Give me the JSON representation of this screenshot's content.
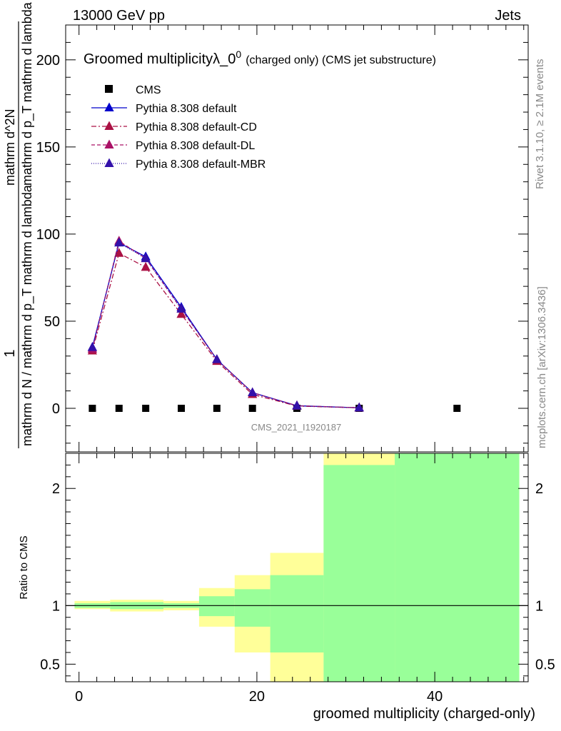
{
  "header": {
    "left": "13000 GeV pp",
    "right": "Jets"
  },
  "side_text": {
    "rivet": "Rivet 3.1.10, ≥ 2.1M events",
    "source": "mcplots.cern.ch [arXiv:1306.3436]"
  },
  "main_ylabel": {
    "numerator": "1",
    "denominator": "mathrm d N / mathrm d p_T mathrm d lambda",
    "top": "mathrm d^2N",
    "top_den": "mathrm d p_T mathrm d lambda"
  },
  "chart_data": [
    {
      "type": "line",
      "title": "Groomed multiplicityλ_0^0 (charged only) (CMS jet substructure)",
      "title_main": "Groomed multiplicityλ_0",
      "title_sup": "0",
      "title_rest": "(charged only) (CMS jet substructure)",
      "watermark": "CMS_2021_I1920187",
      "xlim": [
        -1.5,
        50.5
      ],
      "ylim": [
        -25,
        220
      ],
      "yticks": [
        0,
        50,
        100,
        150,
        200
      ],
      "series": [
        {
          "name": "CMS",
          "color": "#000000",
          "marker": "square",
          "x": [
            1.5,
            4.5,
            7.5,
            11.5,
            15.5,
            19.5,
            24.5,
            31.5,
            42.5
          ],
          "y": [
            0,
            0,
            0,
            0,
            0,
            0,
            0,
            0,
            0
          ]
        },
        {
          "name": "Pythia 8.308 default",
          "color": "#0000cc",
          "dash": "",
          "marker": "triangle",
          "x": [
            1.5,
            4.5,
            7.5,
            11.5,
            15.5,
            19.5,
            24.5,
            31.5
          ],
          "y": [
            35,
            95,
            87,
            58,
            28,
            9,
            1.5,
            0.3
          ]
        },
        {
          "name": "Pythia 8.308 default-CD",
          "color": "#aa1144",
          "dash": "7,3,2,3",
          "marker": "triangle",
          "x": [
            1.5,
            4.5,
            7.5,
            11.5,
            15.5,
            19.5,
            24.5,
            31.5
          ],
          "y": [
            33,
            89,
            81,
            54,
            27,
            8,
            1.3,
            0.3
          ]
        },
        {
          "name": "Pythia 8.308 default-DL",
          "color": "#aa1166",
          "dash": "5,3",
          "marker": "triangle",
          "x": [
            1.5,
            4.5,
            7.5,
            11.5,
            15.5,
            19.5,
            24.5,
            31.5
          ],
          "y": [
            34,
            96,
            86,
            57,
            28,
            9,
            1.5,
            0.3
          ]
        },
        {
          "name": "Pythia 8.308 default-MBR",
          "color": "#3311aa",
          "dash": "1,2",
          "marker": "triangle",
          "x": [
            1.5,
            4.5,
            7.5,
            11.5,
            15.5,
            19.5,
            24.5,
            31.5
          ],
          "y": [
            35,
            95,
            86,
            57,
            28,
            9,
            1.4,
            0.3
          ]
        }
      ]
    },
    {
      "type": "area",
      "ylabel": "Ratio to CMS",
      "xlabel": "groomed multiplicity (charged-only)",
      "xlim": [
        -1.5,
        50.5
      ],
      "ylim": [
        0.35,
        2.3
      ],
      "xticks": [
        0,
        20,
        40
      ],
      "yticks": [
        0.5,
        1,
        2
      ],
      "reference_line": 1,
      "bands": [
        {
          "xlo": -0.5,
          "xhi": 3.5,
          "green": [
            0.98,
            1.02
          ],
          "yellow": [
            0.97,
            1.04
          ]
        },
        {
          "xlo": 3.5,
          "xhi": 9.5,
          "green": [
            0.97,
            1.03
          ],
          "yellow": [
            0.95,
            1.05
          ]
        },
        {
          "xlo": 9.5,
          "xhi": 13.5,
          "green": [
            0.98,
            1.02
          ],
          "yellow": [
            0.96,
            1.04
          ]
        },
        {
          "xlo": 13.5,
          "xhi": 17.5,
          "green": [
            0.91,
            1.08
          ],
          "yellow": [
            0.82,
            1.15
          ]
        },
        {
          "xlo": 17.5,
          "xhi": 21.5,
          "green": [
            0.82,
            1.14
          ],
          "yellow": [
            0.6,
            1.26
          ]
        },
        {
          "xlo": 21.5,
          "xhi": 27.5,
          "green": [
            0.6,
            1.26
          ],
          "yellow": [
            0.35,
            1.45
          ]
        },
        {
          "xlo": 27.5,
          "xhi": 35.5,
          "green": [
            0.35,
            2.2
          ],
          "yellow": [
            0.35,
            2.3
          ]
        },
        {
          "xlo": 35.5,
          "xhi": 49.5,
          "green": [
            0.35,
            2.3
          ],
          "yellow": [
            0.35,
            2.3
          ]
        }
      ],
      "green_color": "#99ff99",
      "yellow_color": "#ffff99"
    }
  ]
}
